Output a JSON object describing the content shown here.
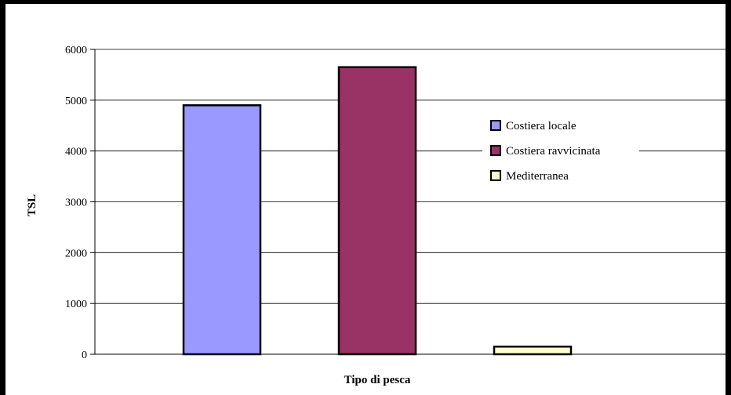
{
  "chart_data": {
    "type": "bar",
    "title": "",
    "xlabel": "Tipo di pesca",
    "ylabel": "TSL",
    "ylim": [
      0,
      6000
    ],
    "yticks": [
      0,
      1000,
      2000,
      3000,
      4000,
      5000,
      6000
    ],
    "grid": true,
    "legend_position": "right",
    "series": [
      {
        "name": "Costiera locale",
        "value": 4900,
        "color": "#9999ff"
      },
      {
        "name": "Costiera ravvicinata",
        "value": 5650,
        "color": "#993366"
      },
      {
        "name": "Mediterranea",
        "value": 150,
        "color": "#ffffcc"
      }
    ]
  }
}
